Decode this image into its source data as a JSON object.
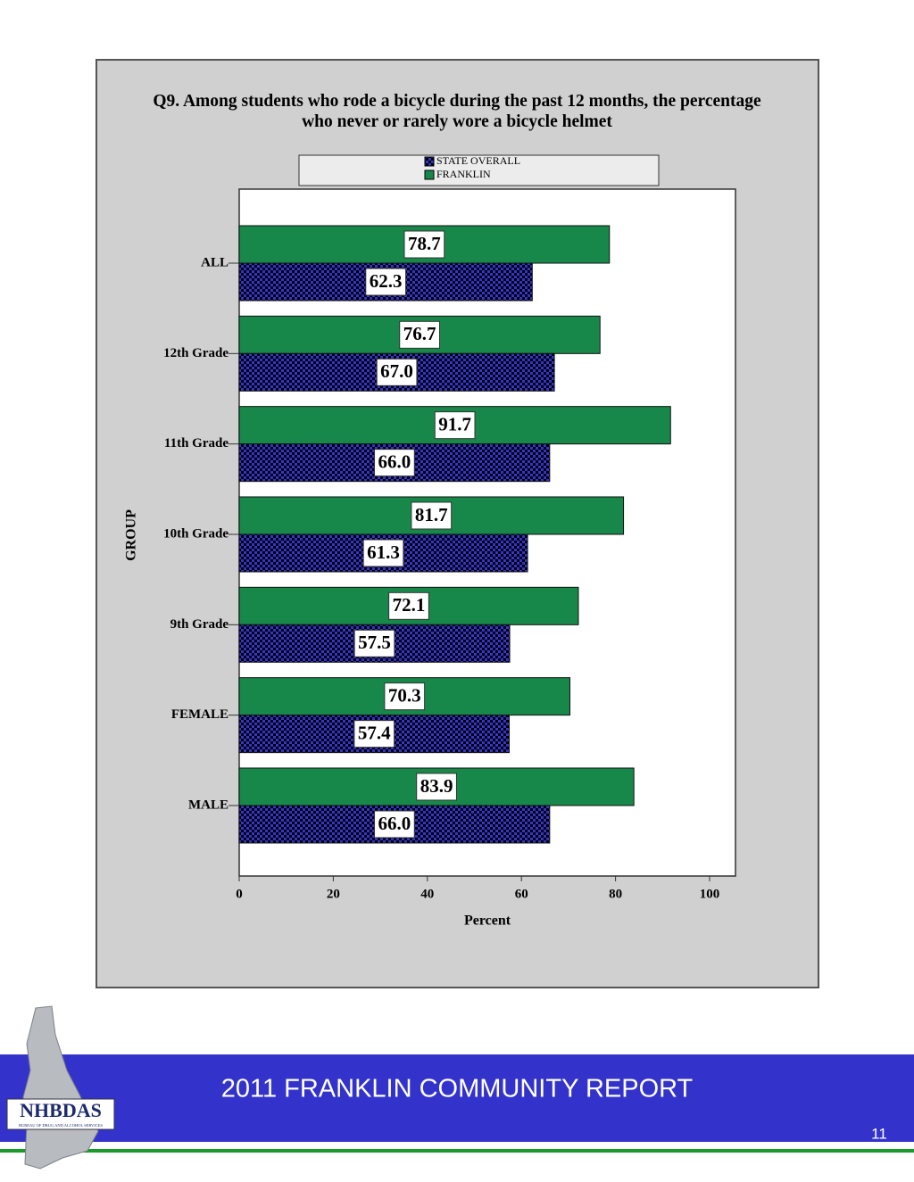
{
  "chart_data": {
    "type": "hbar",
    "title": "Q9. Among students who rode a bicycle during the past 12 months, the percentage who never or rarely wore a bicycle helmet",
    "x_label": "Percent",
    "y_label": "GROUP",
    "categories": [
      "ALL",
      "12th Grade",
      "11th Grade",
      "10th Grade",
      "9th Grade",
      "FEMALE",
      "MALE"
    ],
    "series": [
      {
        "name": "STATE OVERALL",
        "color": "#3434d0",
        "pattern": "checker",
        "values": [
          62.3,
          67.0,
          66.0,
          61.3,
          57.5,
          57.4,
          66.0
        ],
        "value_labels": [
          "62.3",
          "67.0",
          "66.0",
          "61.3",
          "57.5",
          "57.4",
          "66.0"
        ]
      },
      {
        "name": "FRANKLIN",
        "color": "#17884a",
        "pattern": "solid",
        "values": [
          78.7,
          76.7,
          91.7,
          81.7,
          72.1,
          70.3,
          83.9
        ],
        "value_labels": [
          "78.7",
          "76.7",
          "91.7",
          "81.7",
          "72.1",
          "70.3",
          "83.9"
        ]
      }
    ],
    "xlim": [
      0,
      105.5
    ],
    "xticks": [
      0,
      20,
      40,
      60,
      80,
      100
    ],
    "legend": "top"
  },
  "footer": {
    "title": "2011 FRANKLIN COMMUNITY REPORT",
    "page": "11",
    "logo": {
      "name": "NHBDAS",
      "subtitle": "BUREAU OF DRUG AND ALCOHOL SERVICES"
    }
  }
}
